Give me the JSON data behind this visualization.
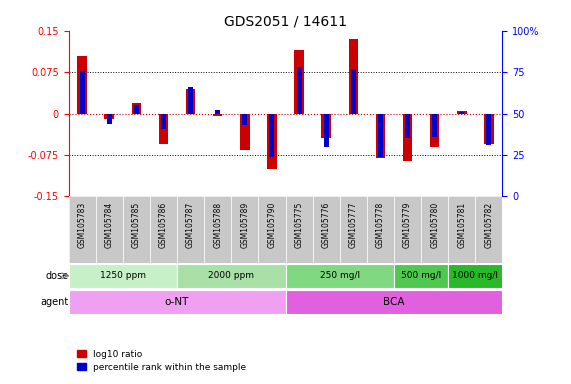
{
  "title": "GDS2051 / 14611",
  "samples": [
    "GSM105783",
    "GSM105784",
    "GSM105785",
    "GSM105786",
    "GSM105787",
    "GSM105788",
    "GSM105789",
    "GSM105790",
    "GSM105775",
    "GSM105776",
    "GSM105777",
    "GSM105778",
    "GSM105779",
    "GSM105780",
    "GSM105781",
    "GSM105782"
  ],
  "log10_ratio": [
    0.105,
    -0.01,
    0.02,
    -0.055,
    0.045,
    -0.005,
    -0.065,
    -0.1,
    0.115,
    -0.045,
    0.135,
    -0.08,
    -0.085,
    -0.06,
    0.005,
    -0.055
  ],
  "percentile_rank": [
    76,
    44,
    55,
    41,
    66,
    52,
    43,
    24,
    78,
    30,
    77,
    24,
    35,
    36,
    51,
    31
  ],
  "ylim": [
    -0.15,
    0.15
  ],
  "yticks_left": [
    -0.15,
    -0.075,
    0,
    0.075,
    0.15
  ],
  "yticks_right": [
    0,
    25,
    50,
    75,
    100
  ],
  "dose_groups": [
    {
      "label": "1250 ppm",
      "start": 0,
      "end": 4,
      "color": "#c8f0c8"
    },
    {
      "label": "2000 ppm",
      "start": 4,
      "end": 8,
      "color": "#a8e0a8"
    },
    {
      "label": "250 mg/l",
      "start": 8,
      "end": 12,
      "color": "#80d880"
    },
    {
      "label": "500 mg/l",
      "start": 12,
      "end": 14,
      "color": "#50c850"
    },
    {
      "label": "1000 mg/l",
      "start": 14,
      "end": 16,
      "color": "#28b828"
    }
  ],
  "agent_groups": [
    {
      "label": "o-NT",
      "start": 0,
      "end": 8,
      "color": "#f0a0f0"
    },
    {
      "label": "BCA",
      "start": 8,
      "end": 16,
      "color": "#e060e0"
    }
  ],
  "bar_color_red": "#cc0000",
  "bar_color_blue": "#0000cc",
  "background_color": "#ffffff",
  "label_area_color": "#c8c8c8",
  "dotted_line_color": "#000000",
  "zero_line_color": "#cc0000",
  "legend_red_label": "log10 ratio",
  "legend_blue_label": "percentile rank within the sample"
}
